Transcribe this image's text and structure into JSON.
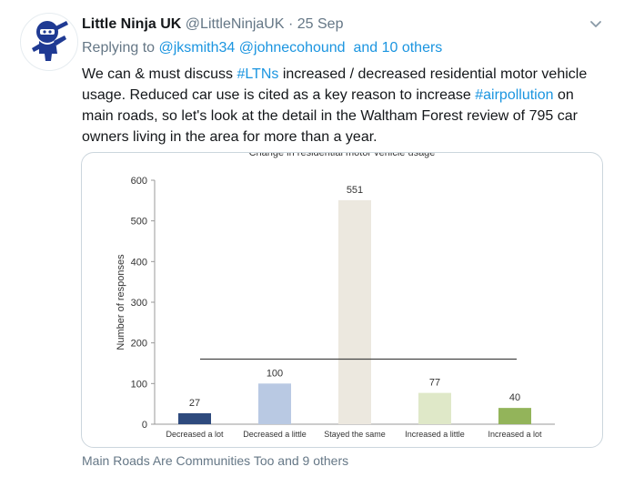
{
  "tweet": {
    "author_name": "Little Ninja UK",
    "handle": "@LittleNinjaUK",
    "separator": " · ",
    "date": "25 Sep",
    "replying_prefix": "Replying to ",
    "reply_handle_1": "@jksmith34",
    "reply_handle_2": "@johnecohound",
    "reply_others": "and 10 others",
    "text_part1": "We can & must discuss ",
    "hashtag_ltns": "#LTNs",
    "text_part2": " increased / decreased residential motor vehicle usage. Reduced car use is cited as a key reason to increase ",
    "hashtag_airpollution": "#airpollution",
    "text_part3": " on main roads, so let's look at the detail in the Waltham Forest review of 795 car owners living in the area for more than a year."
  },
  "footer": {
    "tagged": "Main Roads Are Communities Too and 9 others"
  },
  "icons": {
    "avatar": "ninja-logo",
    "caret": "chevron-down-icon"
  },
  "colors": {
    "link": "#1b95e0",
    "ninja": "#1f3a93"
  },
  "chart_data": {
    "type": "bar",
    "title": "Change in residential motor vehicle usage",
    "ylabel": "Number of responses",
    "categories": [
      "Decreased a lot",
      "Decreased a little",
      "Stayed the same",
      "Increased a little",
      "Increased a lot"
    ],
    "values": [
      27,
      100,
      551,
      77,
      40
    ],
    "bar_colors": [
      "#2e4a7d",
      "#b9c9e3",
      "#ece8df",
      "#dfe8c8",
      "#93b45a"
    ],
    "ylim": [
      0,
      600
    ],
    "yticks": [
      0,
      100,
      200,
      300,
      400,
      500,
      600
    ],
    "reference_line_value": 160,
    "grid": false
  }
}
